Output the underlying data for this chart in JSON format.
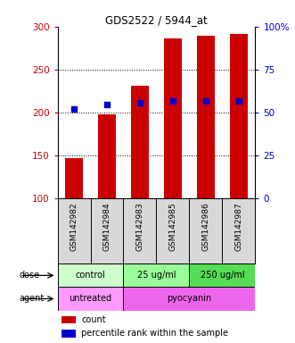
{
  "title": "GDS2522 / 5944_at",
  "samples": [
    "GSM142982",
    "GSM142984",
    "GSM142983",
    "GSM142985",
    "GSM142986",
    "GSM142987"
  ],
  "counts": [
    147,
    198,
    232,
    287,
    290,
    292
  ],
  "percentile_ranks": [
    52,
    55,
    56,
    57,
    57,
    57
  ],
  "ylim_left": [
    100,
    300
  ],
  "ylim_right": [
    0,
    100
  ],
  "bar_color": "#cc0000",
  "dot_color": "#0000cc",
  "tick_color_left": "#cc0000",
  "tick_color_right": "#0000cc",
  "legend_count_color": "#cc0000",
  "legend_pct_color": "#0000cc",
  "label_bg": "#d8d8d8",
  "dose_groups": [
    {
      "label": "control",
      "start": 0,
      "end": 1,
      "color": "#ccffcc"
    },
    {
      "label": "25 ug/ml",
      "start": 2,
      "end": 3,
      "color": "#99ff99"
    },
    {
      "label": "250 ug/ml",
      "start": 4,
      "end": 5,
      "color": "#55dd55"
    }
  ],
  "agent_groups": [
    {
      "label": "untreated",
      "start": 0,
      "end": 1,
      "color": "#ff99ff"
    },
    {
      "label": "pyocyanin",
      "start": 2,
      "end": 5,
      "color": "#ee66ee"
    }
  ]
}
